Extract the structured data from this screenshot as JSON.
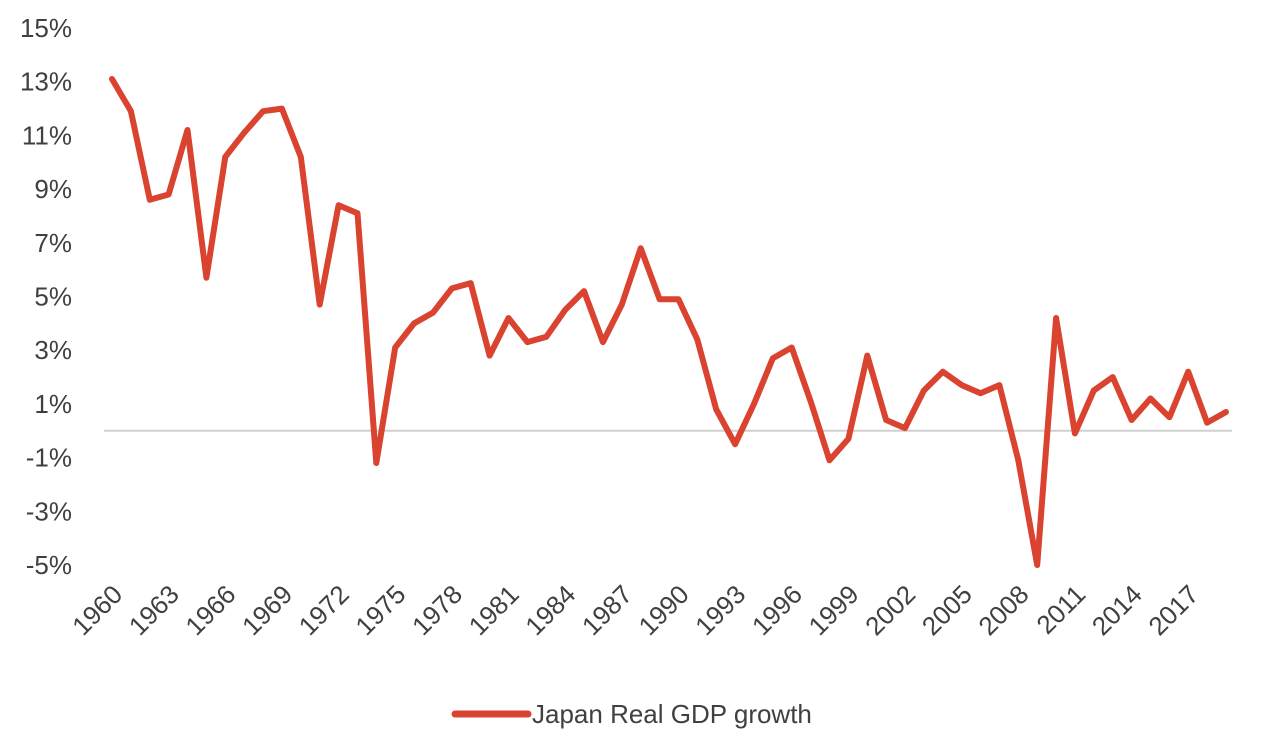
{
  "chart_data": {
    "type": "line",
    "title": "",
    "xlabel": "",
    "ylabel": "",
    "ylim": [
      -5,
      15
    ],
    "y_tick_values": [
      -5,
      -3,
      -1,
      1,
      3,
      5,
      7,
      9,
      11,
      13,
      15
    ],
    "y_tick_labels": [
      "-5%",
      "-3%",
      "-1%",
      "1%",
      "3%",
      "5%",
      "7%",
      "9%",
      "11%",
      "13%",
      "15%"
    ],
    "x_tick_labels": [
      "1960",
      "1963",
      "1966",
      "1969",
      "1972",
      "1975",
      "1978",
      "1981",
      "1984",
      "1987",
      "1990",
      "1993",
      "1996",
      "1999",
      "2002",
      "2005",
      "2008",
      "2011",
      "2014",
      "2017"
    ],
    "x": [
      1960,
      1961,
      1962,
      1963,
      1964,
      1965,
      1966,
      1967,
      1968,
      1969,
      1970,
      1971,
      1972,
      1973,
      1974,
      1975,
      1976,
      1977,
      1978,
      1979,
      1980,
      1981,
      1982,
      1983,
      1984,
      1985,
      1986,
      1987,
      1988,
      1989,
      1990,
      1991,
      1992,
      1993,
      1994,
      1995,
      1996,
      1997,
      1998,
      1999,
      2000,
      2001,
      2002,
      2003,
      2004,
      2005,
      2006,
      2007,
      2008,
      2009,
      2010,
      2011,
      2012,
      2013,
      2014,
      2015,
      2016,
      2017,
      2018,
      2019
    ],
    "series": [
      {
        "name": "Japan Real GDP growth",
        "color": "#d9432f",
        "values": [
          13.1,
          11.9,
          8.6,
          8.8,
          11.2,
          5.7,
          10.2,
          11.1,
          11.9,
          12.0,
          10.2,
          4.7,
          8.4,
          8.1,
          -1.2,
          3.1,
          4.0,
          4.4,
          5.3,
          5.5,
          2.8,
          4.2,
          3.3,
          3.5,
          4.5,
          5.2,
          3.3,
          4.7,
          6.8,
          4.9,
          4.9,
          3.4,
          0.8,
          -0.5,
          1.0,
          2.7,
          3.1,
          1.1,
          -1.1,
          -0.3,
          2.8,
          0.4,
          0.1,
          1.5,
          2.2,
          1.7,
          1.4,
          1.7,
          -1.1,
          -5.0,
          4.2,
          -0.1,
          1.5,
          2.0,
          0.4,
          1.2,
          0.5,
          2.2,
          0.3,
          0.7
        ]
      }
    ],
    "legend": "bottom-center"
  }
}
